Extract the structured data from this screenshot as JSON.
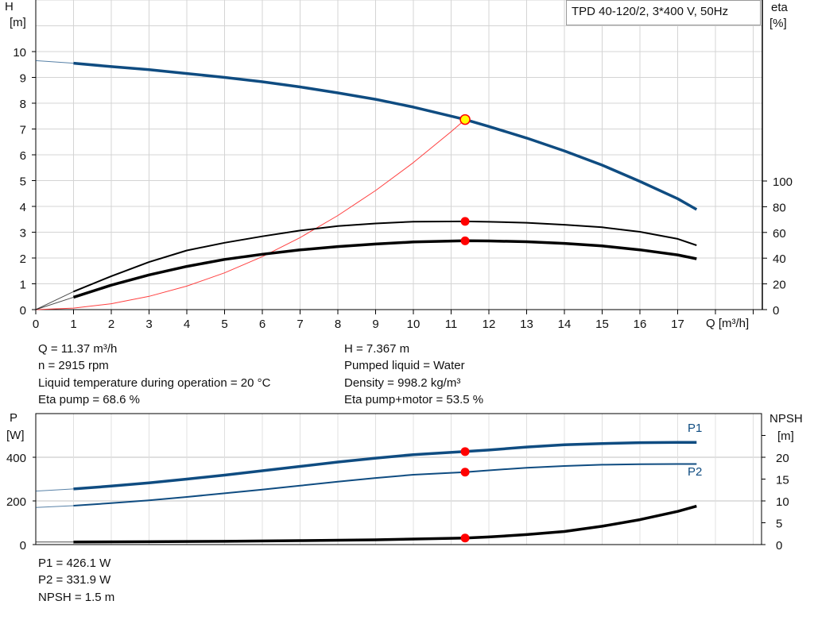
{
  "legend_box": "TPD 40-120/2, 3*400 V, 50Hz",
  "chart_data": [
    {
      "type": "line",
      "title": "TPD 40-120/2, 3*400 V, 50Hz",
      "xlabel": "Q [m³/h]",
      "ylabel": "H [m]",
      "ylabel_top": "H",
      "ylabel_unit": "[m]",
      "y2label_top": "eta",
      "y2label_unit": "[%]",
      "xlim": [
        0,
        19
      ],
      "ylim": [
        0,
        12
      ],
      "y2lim": [
        0,
        240
      ],
      "xticks": [
        "0",
        "1",
        "2",
        "3",
        "4",
        "5",
        "6",
        "7",
        "8",
        "9",
        "10",
        "11",
        "12",
        "13",
        "14",
        "15",
        "16",
        "17"
      ],
      "yticks": [
        "0",
        "1",
        "2",
        "3",
        "4",
        "5",
        "6",
        "7",
        "8",
        "9",
        "10"
      ],
      "y2ticks": [
        "0",
        "20",
        "40",
        "60",
        "80",
        "100"
      ],
      "grid": true,
      "series": [
        {
          "id": "H",
          "axis": "left",
          "color": "#0f4c81",
          "x": [
            1,
            2,
            3,
            4,
            5,
            6,
            7,
            8,
            9,
            10,
            11,
            11.37,
            12,
            13,
            14,
            15,
            16,
            17,
            17.5
          ],
          "y": [
            9.55,
            9.42,
            9.3,
            9.15,
            9.0,
            8.83,
            8.63,
            8.4,
            8.15,
            7.85,
            7.5,
            7.367,
            7.1,
            6.65,
            6.15,
            5.6,
            4.97,
            4.3,
            3.88
          ],
          "extrapolated_start": [
            0,
            9.65
          ]
        },
        {
          "id": "eta_pump",
          "axis": "right",
          "color": "#000000",
          "x": [
            1,
            2,
            3,
            4,
            5,
            6,
            7,
            8,
            9,
            10,
            11.37,
            12,
            13,
            14,
            15,
            16,
            17,
            17.5
          ],
          "y": [
            14,
            26,
            37,
            46,
            52,
            57,
            61.5,
            65,
            67,
            68.4,
            68.6,
            68.3,
            67.5,
            66,
            64,
            60.5,
            55,
            50
          ],
          "extrapolated_start": [
            0,
            0
          ]
        },
        {
          "id": "eta_pump_motor",
          "axis": "right",
          "color": "#000000",
          "x": [
            1,
            2,
            3,
            4,
            5,
            6,
            7,
            8,
            9,
            10,
            11.37,
            12,
            13,
            14,
            15,
            16,
            17,
            17.5
          ],
          "y": [
            9.6,
            19,
            27,
            33.6,
            39,
            43,
            46.4,
            49,
            51,
            52.6,
            53.5,
            53.4,
            52.8,
            51.5,
            49.5,
            46.5,
            42.5,
            39.5
          ],
          "extrapolated_start": [
            0,
            0
          ]
        },
        {
          "id": "system_curve",
          "axis": "left",
          "color": "#ff4040",
          "x": [
            0,
            1,
            2,
            3,
            4,
            5,
            6,
            7,
            8,
            9,
            10,
            11,
            11.37
          ],
          "y": [
            0,
            0.057,
            0.228,
            0.513,
            0.912,
            1.425,
            2.052,
            2.792,
            3.647,
            4.616,
            5.699,
            6.896,
            7.367
          ]
        }
      ],
      "operating_point": {
        "Q": 11.37,
        "H": 7.367,
        "eta_pump": 68.6,
        "eta_pump_motor": 53.5
      }
    },
    {
      "type": "line",
      "ylabel_top": "P",
      "ylabel_unit": "[W]",
      "y2label_top": "NPSH",
      "y2label_unit": "[m]",
      "xlim": [
        0,
        19
      ],
      "ylim": [
        0,
        600
      ],
      "y2lim": [
        0,
        30
      ],
      "yticks": [
        "0",
        "200",
        "400"
      ],
      "y2ticks": [
        "0",
        "5",
        "10",
        "15",
        "20"
      ],
      "grid": true,
      "series": [
        {
          "id": "P1",
          "name": "P1",
          "axis": "left",
          "color": "#0f4c81",
          "x": [
            1,
            2,
            3,
            4,
            5,
            6,
            7,
            8,
            9,
            10,
            11.37,
            12,
            13,
            14,
            15,
            16,
            17,
            17.5
          ],
          "y": [
            255,
            268,
            283,
            300,
            318,
            338,
            358,
            378,
            396,
            412,
            426.1,
            433,
            447,
            457,
            463,
            467,
            468,
            468
          ],
          "extrapolated_start": [
            0,
            245
          ]
        },
        {
          "id": "P2",
          "name": "P2",
          "axis": "left",
          "color": "#0f4c81",
          "x": [
            1,
            2,
            3,
            4,
            5,
            6,
            7,
            8,
            9,
            10,
            11.37,
            12,
            13,
            14,
            15,
            16,
            17,
            17.5
          ],
          "y": [
            178,
            190,
            203,
            218,
            235,
            252,
            270,
            288,
            305,
            320,
            331.9,
            340,
            352,
            360,
            366,
            368,
            369,
            369
          ],
          "extrapolated_start": [
            0,
            170
          ]
        },
        {
          "id": "NPSH",
          "axis": "right",
          "color": "#000000",
          "x": [
            1,
            3,
            5,
            7,
            9,
            11.37,
            12,
            13,
            14,
            15,
            16,
            17,
            17.5
          ],
          "y": [
            0.6,
            0.65,
            0.75,
            0.9,
            1.1,
            1.5,
            1.75,
            2.3,
            3.0,
            4.2,
            5.7,
            7.6,
            8.8
          ],
          "extrapolated_start": [
            0,
            0.6
          ]
        }
      ],
      "operating_point": {
        "Q": 11.37,
        "P1": 426.1,
        "P2": 331.9,
        "NPSH": 1.5
      }
    }
  ],
  "info": {
    "left": [
      "Q = 11.37 m³/h",
      "n = 2915 rpm",
      "Liquid temperature during operation = 20 °C",
      "Eta pump = 68.6 %"
    ],
    "right": [
      "H = 7.367 m",
      "Pumped liquid = Water",
      "Density = 998.2 kg/m³",
      "Eta pump+motor = 53.5 %"
    ],
    "bottom": [
      "P1 = 426.1 W",
      "P2 = 331.9 W",
      "NPSH = 1.5 m"
    ]
  }
}
